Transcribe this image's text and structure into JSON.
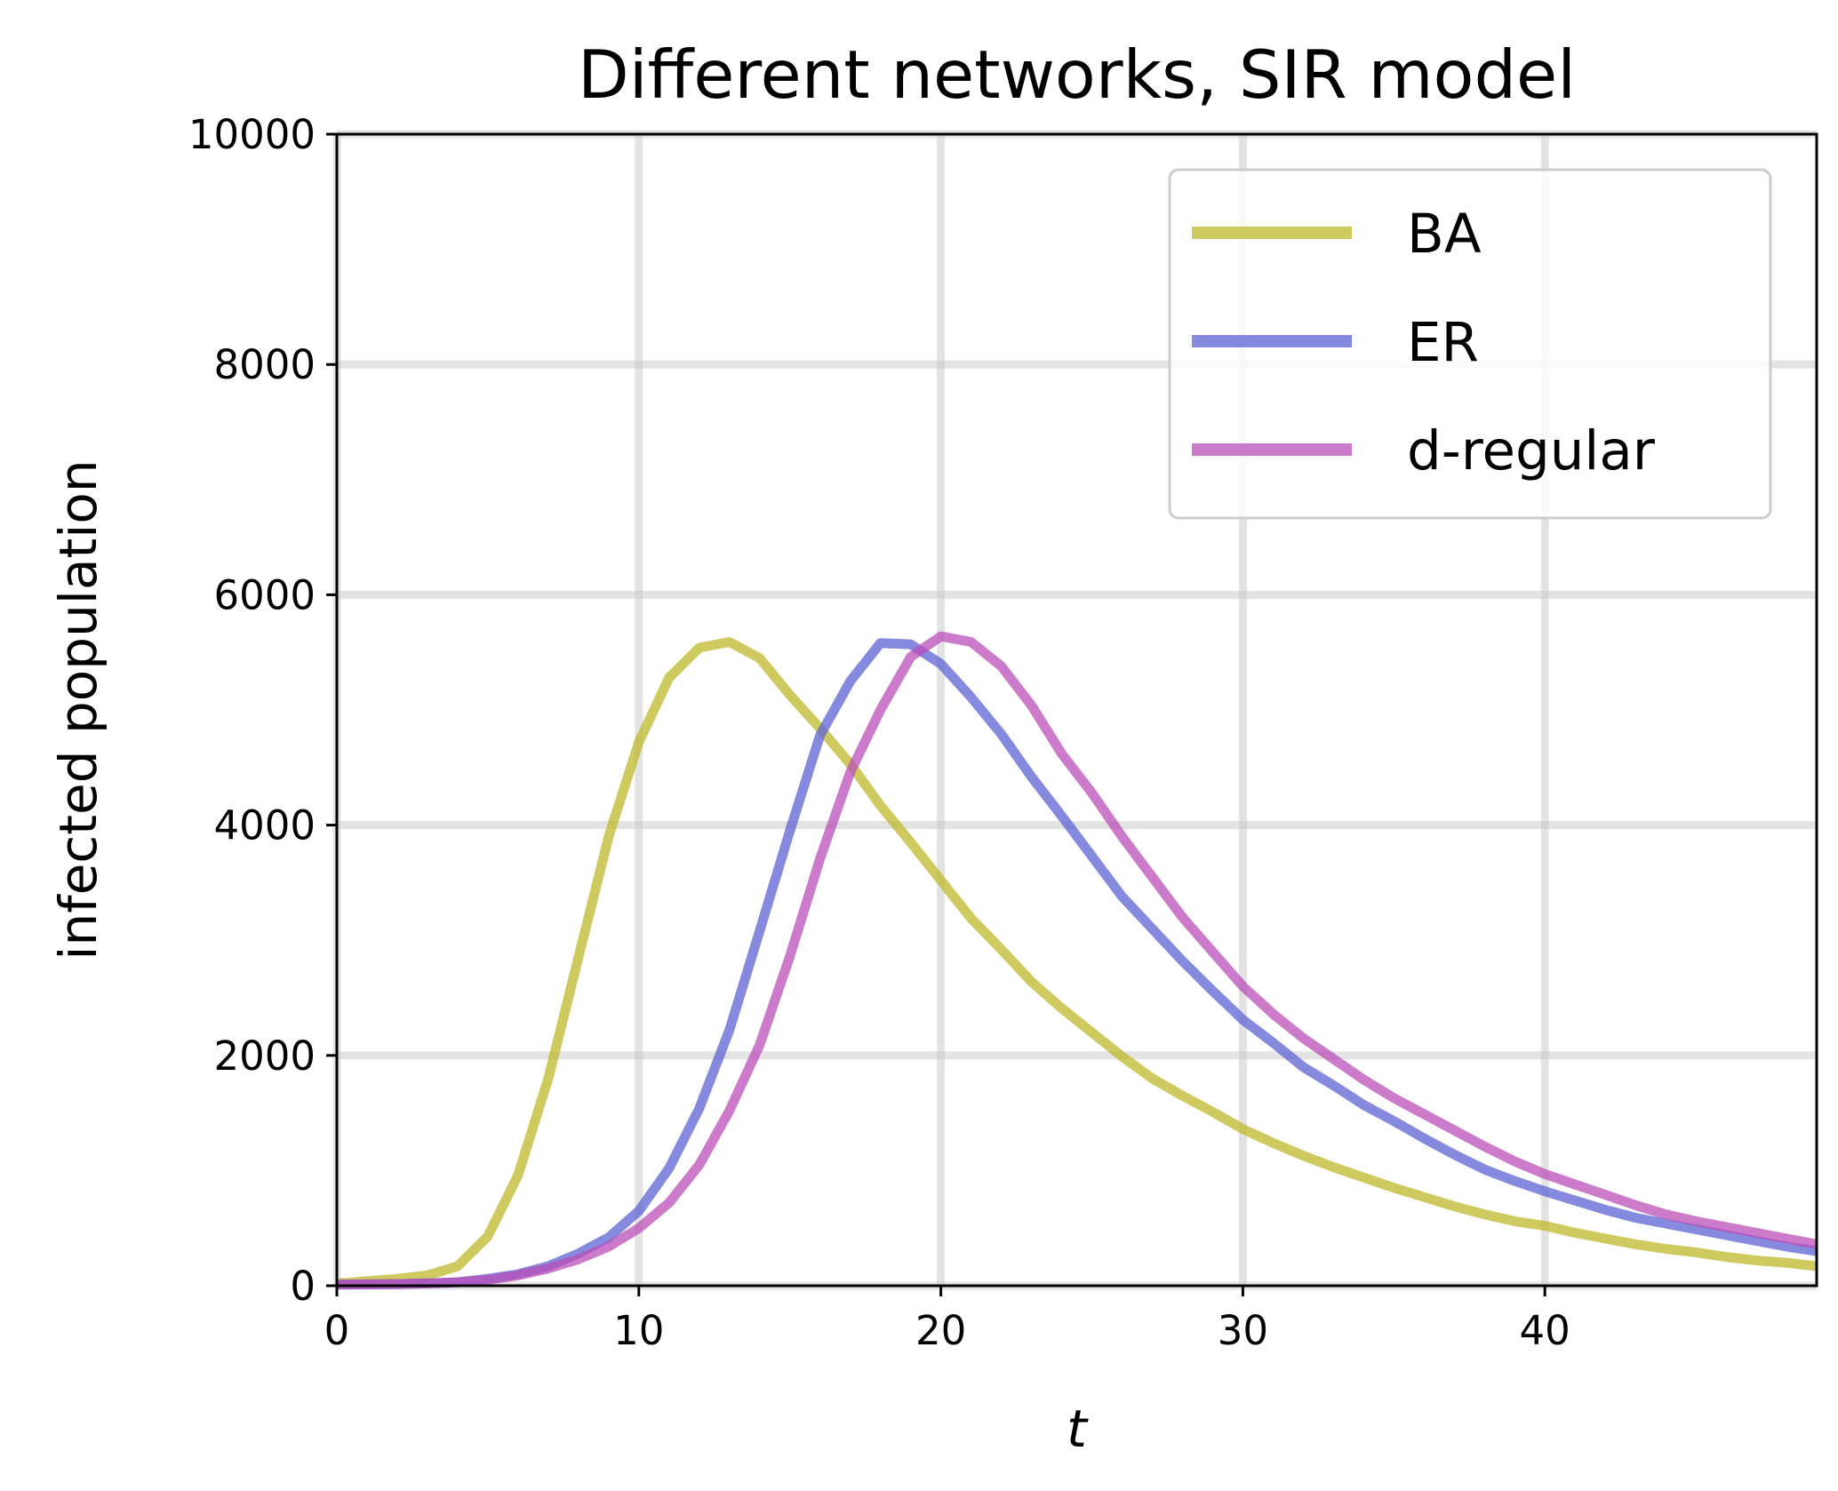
{
  "chart_data": {
    "type": "line",
    "title": "Different networks, SIR model",
    "xlabel": "t",
    "ylabel": "infected population",
    "xlim": [
      0,
      49
    ],
    "ylim": [
      0,
      10000
    ],
    "xticks": [
      0,
      10,
      20,
      30,
      40
    ],
    "yticks": [
      0,
      2000,
      4000,
      6000,
      8000,
      10000
    ],
    "grid": true,
    "legend_position": "top-right",
    "series": [
      {
        "name": "BA",
        "color": "#bfb82a",
        "x": [
          0,
          1,
          2,
          3,
          4,
          5,
          6,
          7,
          8,
          9,
          10,
          11,
          12,
          13,
          14,
          15,
          16,
          17,
          18,
          19,
          20,
          21,
          22,
          23,
          24,
          25,
          26,
          27,
          28,
          29,
          30,
          31,
          32,
          33,
          34,
          35,
          36,
          37,
          38,
          39,
          40,
          41,
          42,
          43,
          44,
          45,
          46,
          47,
          48,
          49
        ],
        "y": [
          20,
          40,
          60,
          90,
          170,
          430,
          960,
          1800,
          2850,
          3900,
          4720,
          5280,
          5540,
          5590,
          5450,
          5130,
          4840,
          4530,
          4170,
          3850,
          3520,
          3190,
          2920,
          2640,
          2410,
          2200,
          1990,
          1800,
          1650,
          1510,
          1360,
          1240,
          1130,
          1030,
          940,
          850,
          770,
          690,
          620,
          560,
          520,
          460,
          410,
          360,
          320,
          290,
          250,
          220,
          200,
          170
        ]
      },
      {
        "name": "ER",
        "color": "#5c63d4",
        "x": [
          0,
          1,
          2,
          3,
          4,
          5,
          6,
          7,
          8,
          9,
          10,
          11,
          12,
          13,
          14,
          15,
          16,
          17,
          18,
          19,
          20,
          21,
          22,
          23,
          24,
          25,
          26,
          27,
          28,
          29,
          30,
          31,
          32,
          33,
          34,
          35,
          36,
          37,
          38,
          39,
          40,
          41,
          42,
          43,
          44,
          45,
          46,
          47,
          48,
          49
        ],
        "y": [
          10,
          12,
          15,
          20,
          30,
          60,
          100,
          170,
          280,
          420,
          650,
          1020,
          1540,
          2220,
          3080,
          3950,
          4780,
          5250,
          5580,
          5570,
          5400,
          5110,
          4790,
          4420,
          4080,
          3730,
          3380,
          3100,
          2820,
          2560,
          2310,
          2110,
          1900,
          1740,
          1570,
          1430,
          1280,
          1140,
          1010,
          910,
          820,
          740,
          660,
          590,
          540,
          490,
          440,
          390,
          340,
          300
        ]
      },
      {
        "name": "d-regular",
        "color": "#bb4db8",
        "x": [
          0,
          1,
          2,
          3,
          4,
          5,
          6,
          7,
          8,
          9,
          10,
          11,
          12,
          13,
          14,
          15,
          16,
          17,
          18,
          19,
          20,
          21,
          22,
          23,
          24,
          25,
          26,
          27,
          28,
          29,
          30,
          31,
          32,
          33,
          34,
          35,
          36,
          37,
          38,
          39,
          40,
          41,
          42,
          43,
          44,
          45,
          46,
          47,
          48,
          49
        ],
        "y": [
          10,
          12,
          15,
          20,
          30,
          50,
          90,
          150,
          230,
          340,
          500,
          720,
          1050,
          1520,
          2090,
          2860,
          3710,
          4460,
          5000,
          5460,
          5640,
          5590,
          5380,
          5040,
          4620,
          4280,
          3900,
          3550,
          3200,
          2900,
          2600,
          2360,
          2150,
          1970,
          1790,
          1630,
          1490,
          1350,
          1210,
          1080,
          970,
          880,
          790,
          700,
          620,
          560,
          510,
          460,
          410,
          360
        ]
      }
    ]
  }
}
